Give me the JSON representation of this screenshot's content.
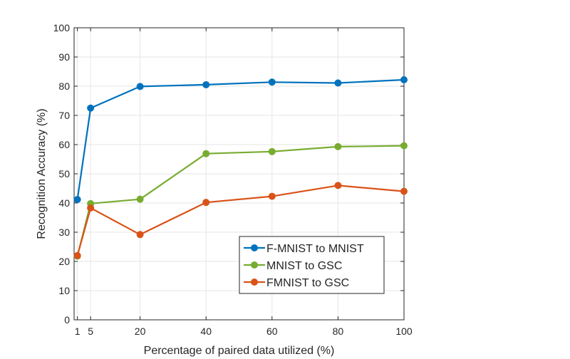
{
  "chart_data": {
    "type": "line",
    "title": "",
    "xlabel": "Percentage of paired data utilized (%)",
    "ylabel": "Recognition Accuracy (%)",
    "xlim": [
      0,
      100
    ],
    "ylim": [
      0,
      100
    ],
    "xticks": [
      1,
      5,
      20,
      40,
      60,
      80,
      100
    ],
    "yticks": [
      0,
      10,
      20,
      30,
      40,
      50,
      60,
      70,
      80,
      90,
      100
    ],
    "grid": true,
    "legend_position": "lower-right",
    "x": [
      1,
      5,
      20,
      40,
      60,
      80,
      100
    ],
    "series": [
      {
        "name": "F-MNIST to MNIST",
        "color": "#0072BD",
        "values": [
          41.2,
          72.5,
          79.9,
          80.5,
          81.4,
          81.1,
          82.2
        ]
      },
      {
        "name": "MNIST to GSC",
        "color": "#77AC30",
        "values": [
          21.8,
          39.8,
          41.3,
          56.9,
          57.6,
          59.3,
          59.6
        ]
      },
      {
        "name": "FMNIST to GSC",
        "color": "#D95319",
        "values": [
          22.0,
          38.3,
          29.2,
          40.2,
          42.3,
          46.0,
          44.0
        ]
      }
    ]
  }
}
